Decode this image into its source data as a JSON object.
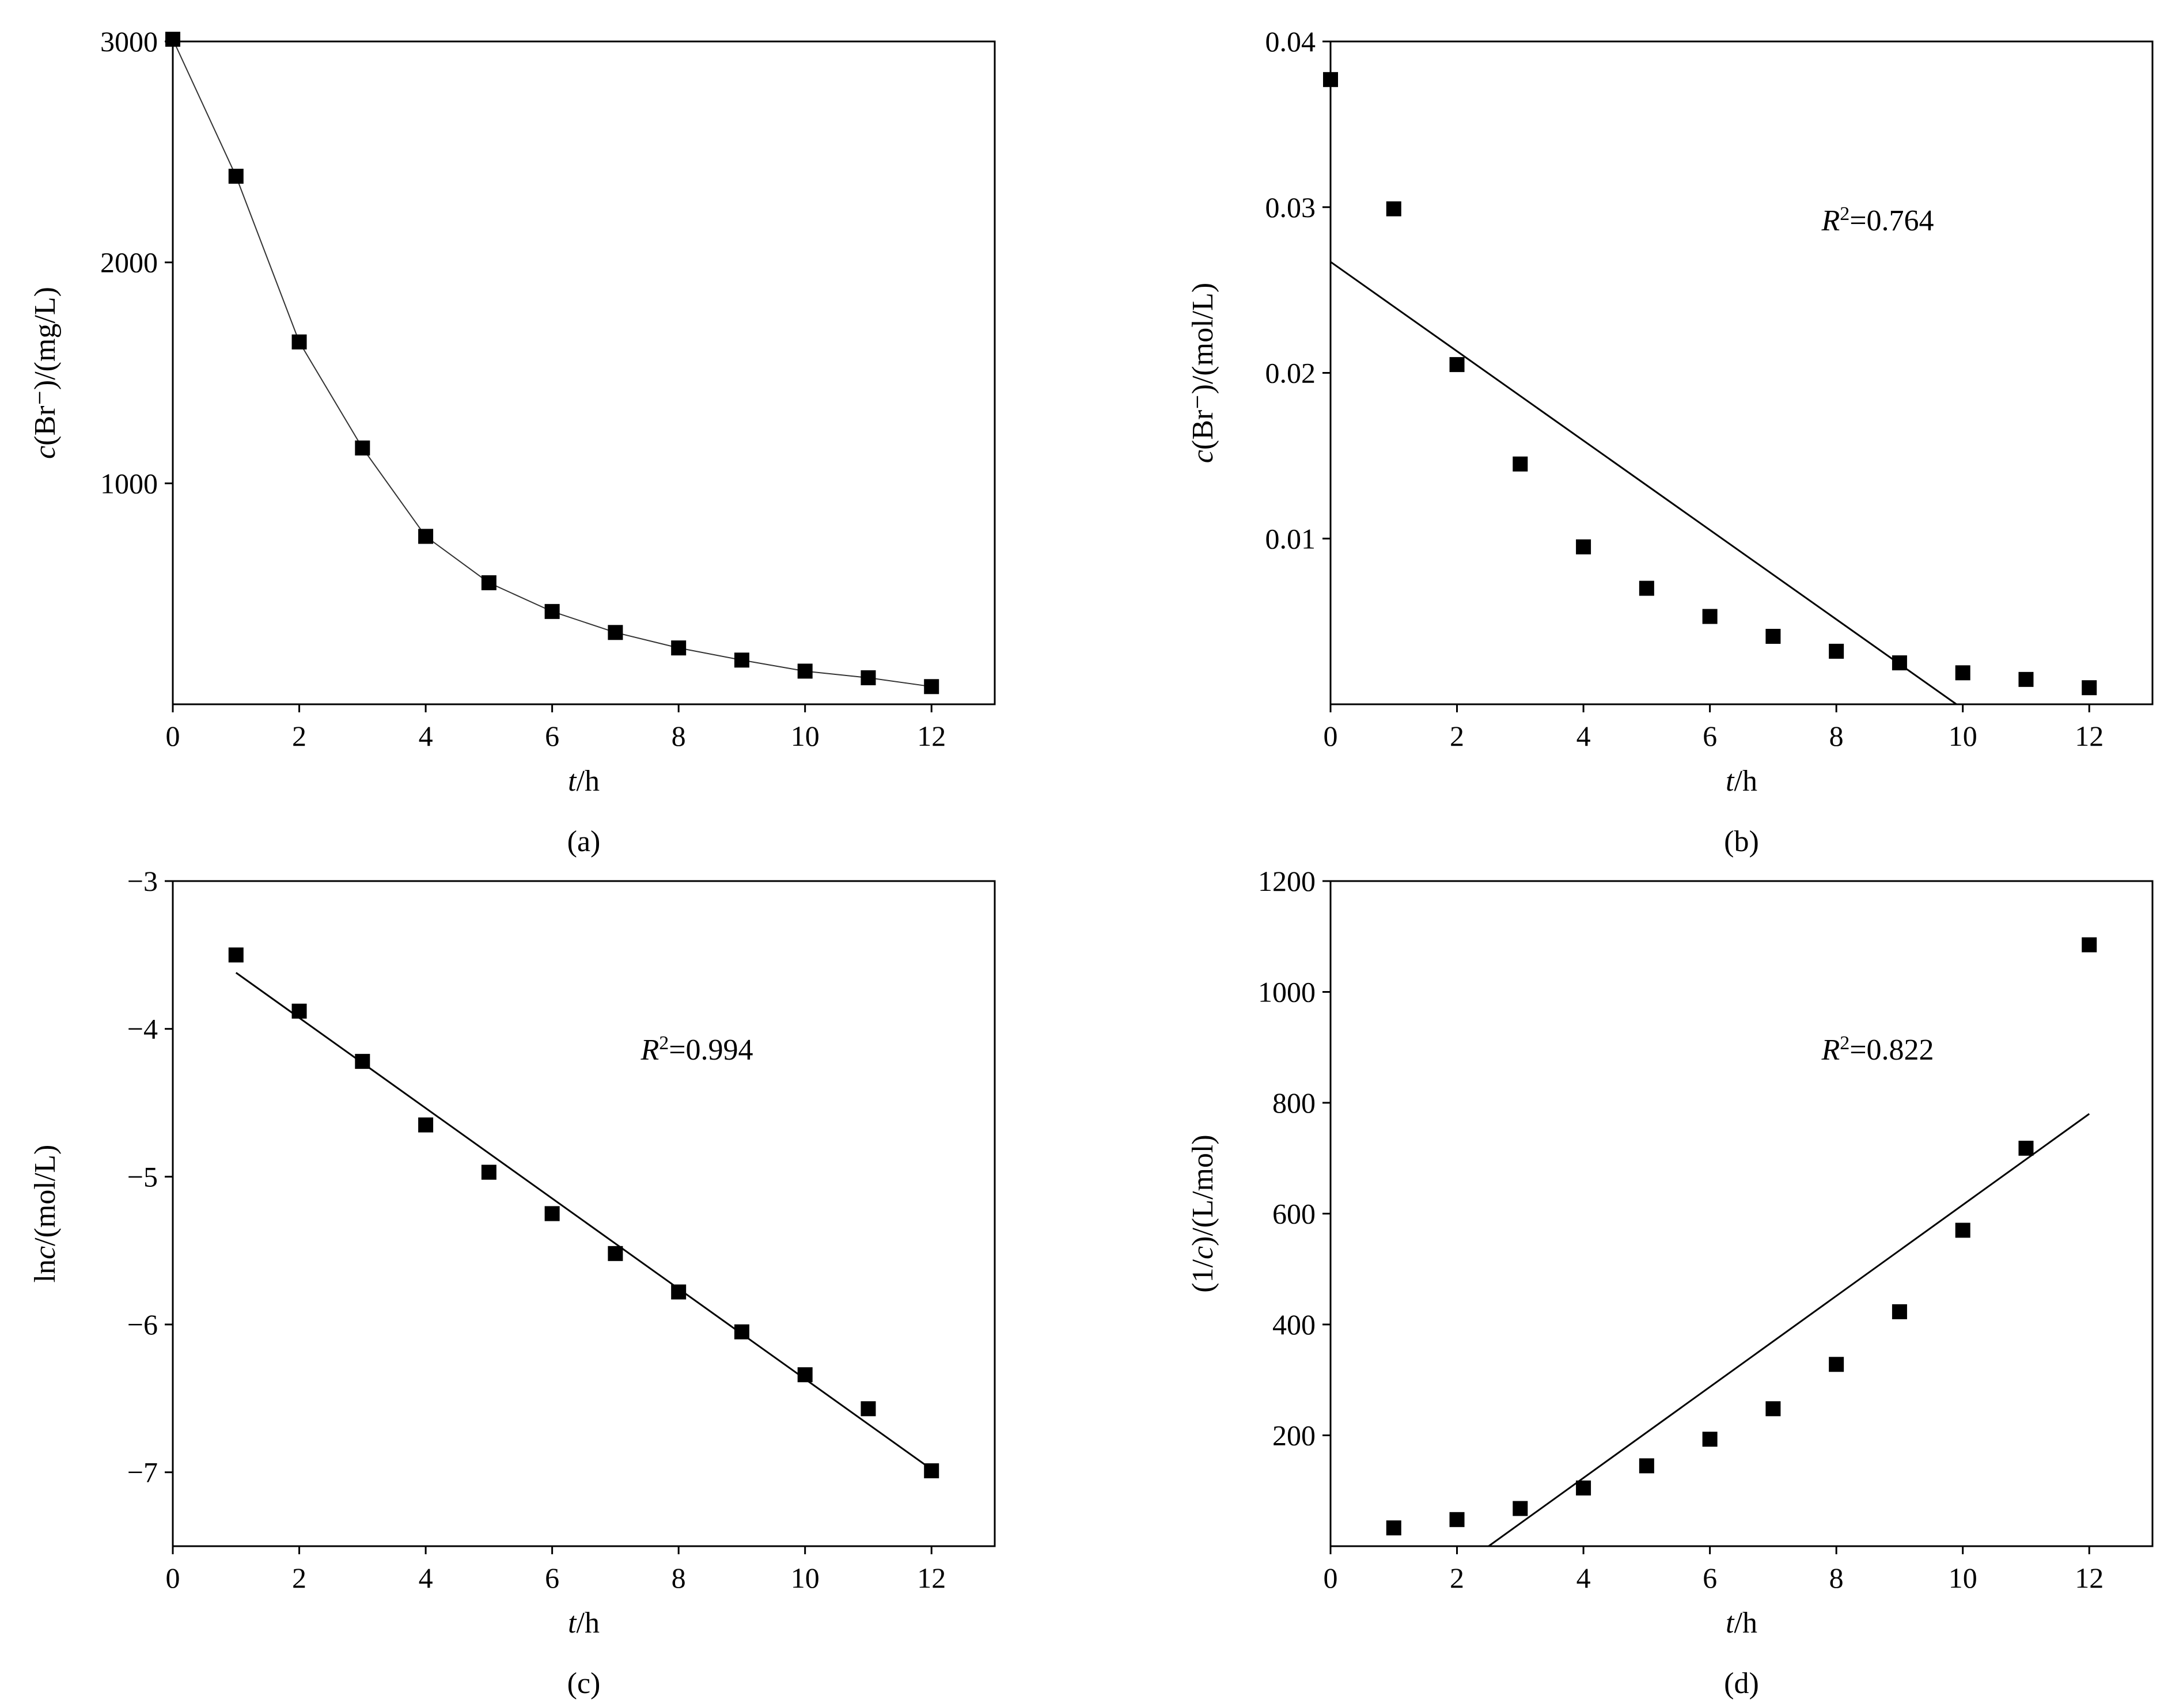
{
  "figure": {
    "panels": [
      "a",
      "b",
      "c",
      "d"
    ]
  },
  "chart_data": [
    {
      "id": "a",
      "type": "scatter",
      "caption": "(a)",
      "xlabel": "t/h",
      "ylabel": "c(Br⁻)/(mg/L)",
      "xlim": [
        0,
        13
      ],
      "ylim": [
        0,
        3000
      ],
      "xticks": [
        0,
        2,
        4,
        6,
        8,
        10,
        12
      ],
      "yticks": [
        1000,
        2000,
        3000
      ],
      "xtick_labels": [
        "0",
        "2",
        "4",
        "6",
        "8",
        "10",
        "12"
      ],
      "ytick_labels": [
        "1000",
        "2000",
        "3000"
      ],
      "connect_points": true,
      "annotation": "",
      "series": [
        {
          "name": "c(Br⁻)",
          "x": [
            0,
            1,
            2,
            3,
            4,
            5,
            6,
            7,
            8,
            9,
            10,
            11,
            12
          ],
          "y": [
            3010,
            2390,
            1640,
            1160,
            760,
            550,
            420,
            325,
            255,
            200,
            150,
            120,
            80
          ]
        }
      ]
    },
    {
      "id": "b",
      "type": "scatter",
      "caption": "(b)",
      "xlabel": "t/h",
      "ylabel": "c(Br⁻)/(mol/L)",
      "xlim": [
        0,
        13
      ],
      "ylim": [
        0,
        0.04
      ],
      "xticks": [
        0,
        2,
        4,
        6,
        8,
        10,
        12
      ],
      "yticks": [
        0.01,
        0.02,
        0.03,
        0.04
      ],
      "xtick_labels": [
        "0",
        "2",
        "4",
        "6",
        "8",
        "10",
        "12"
      ],
      "ytick_labels": [
        "0.01",
        "0.02",
        "0.03",
        "0.04"
      ],
      "annotation": "R²=0.764",
      "fit": {
        "x": [
          0,
          9.9
        ],
        "y": [
          0.0267,
          0
        ]
      },
      "series": [
        {
          "name": "c(Br⁻)",
          "x": [
            0,
            1,
            2,
            3,
            4,
            5,
            6,
            7,
            8,
            9,
            10,
            11,
            12
          ],
          "y": [
            0.0377,
            0.0299,
            0.0205,
            0.0145,
            0.0095,
            0.007,
            0.0053,
            0.0041,
            0.0032,
            0.0025,
            0.0019,
            0.0015,
            0.001
          ]
        }
      ]
    },
    {
      "id": "c",
      "type": "scatter",
      "caption": "(c)",
      "xlabel": "t/h",
      "ylabel": "lnc/(mol/L)",
      "xlim": [
        0,
        13
      ],
      "ylim": [
        -7.5,
        -3
      ],
      "xticks": [
        0,
        2,
        4,
        6,
        8,
        10,
        12
      ],
      "yticks": [
        -7,
        -6,
        -5,
        -4,
        -3
      ],
      "xtick_labels": [
        "0",
        "2",
        "4",
        "6",
        "8",
        "10",
        "12"
      ],
      "ytick_labels": [
        "−7",
        "−6",
        "−5",
        "−4",
        "−3"
      ],
      "annotation": "R²=0.994",
      "fit": {
        "x": [
          1,
          12
        ],
        "y": [
          -3.62,
          -6.98
        ]
      },
      "series": [
        {
          "name": "lnc",
          "x": [
            1,
            2,
            3,
            4,
            5,
            6,
            7,
            8,
            9,
            10,
            11,
            12
          ],
          "y": [
            -3.5,
            -3.88,
            -4.22,
            -4.65,
            -4.97,
            -5.25,
            -5.52,
            -5.78,
            -6.05,
            -6.34,
            -6.57,
            -6.99
          ]
        }
      ]
    },
    {
      "id": "d",
      "type": "scatter",
      "caption": "(d)",
      "xlabel": "t/h",
      "ylabel": "(1/c)/(L/mol)",
      "xlim": [
        0,
        13
      ],
      "ylim": [
        0,
        1200
      ],
      "xticks": [
        0,
        2,
        4,
        6,
        8,
        10,
        12
      ],
      "yticks": [
        200,
        400,
        600,
        800,
        1000,
        1200
      ],
      "xtick_labels": [
        "0",
        "2",
        "4",
        "6",
        "8",
        "10",
        "12"
      ],
      "ytick_labels": [
        "200",
        "400",
        "600",
        "800",
        "1000",
        "1200"
      ],
      "annotation": "R²=0.822",
      "fit": {
        "x": [
          2.5,
          12
        ],
        "y": [
          0,
          780
        ]
      },
      "series": [
        {
          "name": "1/c",
          "x": [
            1,
            2,
            3,
            4,
            5,
            6,
            7,
            8,
            9,
            10,
            11,
            12
          ],
          "y": [
            33,
            48,
            68,
            105,
            145,
            193,
            248,
            328,
            423,
            570,
            718,
            1085
          ]
        }
      ]
    }
  ]
}
